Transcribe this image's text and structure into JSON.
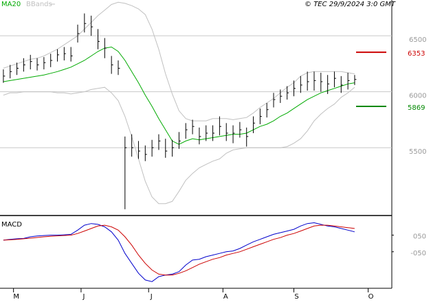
{
  "chart_data": [
    {
      "type": "ohlc",
      "header": "© TEC 29/9/2024 3:0 GMT",
      "x": [
        1,
        3,
        5,
        7,
        9,
        11,
        13,
        15,
        17,
        19,
        21,
        23,
        25,
        27,
        29,
        31,
        33,
        35,
        37,
        39,
        41,
        43,
        45,
        47,
        49,
        51,
        53,
        55,
        57,
        59,
        61,
        63,
        65,
        67,
        69,
        71,
        73,
        75,
        77,
        79,
        81,
        83,
        85,
        87,
        89,
        91,
        93,
        95,
        97,
        99,
        101,
        103,
        105
      ],
      "high": [
        6200,
        6240,
        6260,
        6300,
        6330,
        6300,
        6310,
        6340,
        6380,
        6400,
        6400,
        6600,
        6700,
        6680,
        6560,
        6480,
        6320,
        6280,
        5600,
        5620,
        5560,
        5520,
        5570,
        5620,
        5580,
        5570,
        5640,
        5720,
        5750,
        5680,
        5700,
        5700,
        5780,
        5720,
        5700,
        5730,
        5680,
        5780,
        5850,
        5900,
        5990,
        6020,
        6050,
        6100,
        6140,
        6180,
        6180,
        6170,
        6150,
        6180,
        6140,
        6170,
        6150
      ],
      "low": [
        6080,
        6120,
        6150,
        6180,
        6200,
        6190,
        6200,
        6220,
        6270,
        6280,
        6270,
        6440,
        6530,
        6500,
        6380,
        6300,
        6160,
        6150,
        4950,
        5420,
        5400,
        5380,
        5420,
        5480,
        5410,
        5420,
        5490,
        5580,
        5620,
        5530,
        5560,
        5560,
        5610,
        5560,
        5540,
        5590,
        5510,
        5630,
        5710,
        5770,
        5860,
        5900,
        5930,
        5960,
        5990,
        6010,
        6010,
        6000,
        5980,
        6040,
        5990,
        6020,
        6060
      ],
      "close": [
        6140,
        6180,
        6210,
        6240,
        6270,
        6240,
        6260,
        6280,
        6330,
        6340,
        6320,
        6520,
        6610,
        6580,
        6450,
        6390,
        6240,
        6210,
        5500,
        5500,
        5470,
        5440,
        5500,
        5560,
        5470,
        5500,
        5560,
        5660,
        5690,
        5600,
        5630,
        5630,
        5690,
        5630,
        5630,
        5660,
        5600,
        5720,
        5780,
        5840,
        5930,
        5960,
        5990,
        6030,
        6060,
        6090,
        6100,
        6090,
        6070,
        6120,
        6060,
        6100,
        6110
      ],
      "bar_color": "#000000",
      "series": [
        {
          "name": "MA20",
          "color": "#00aa00",
          "values": [
            6090,
            6100,
            6110,
            6120,
            6130,
            6140,
            6150,
            6165,
            6180,
            6200,
            6220,
            6250,
            6280,
            6320,
            6360,
            6390,
            6400,
            6360,
            6280,
            6180,
            6080,
            5970,
            5870,
            5760,
            5660,
            5560,
            5530,
            5560,
            5580,
            5570,
            5580,
            5590,
            5600,
            5610,
            5620,
            5620,
            5630,
            5660,
            5690,
            5710,
            5740,
            5780,
            5810,
            5850,
            5890,
            5930,
            5960,
            5990,
            6010,
            6030,
            6050,
            6070,
            6080
          ]
        },
        {
          "name": "BBands",
          "color": "#c0c0c0",
          "upper": [
            6210,
            6230,
            6250,
            6270,
            6290,
            6300,
            6320,
            6350,
            6380,
            6420,
            6460,
            6500,
            6560,
            6620,
            6680,
            6730,
            6780,
            6800,
            6790,
            6770,
            6740,
            6690,
            6560,
            6380,
            6160,
            5980,
            5830,
            5760,
            5740,
            5740,
            5740,
            5760,
            5760,
            5760,
            5750,
            5760,
            5770,
            5810,
            5860,
            5900,
            5940,
            5990,
            6040,
            6080,
            6140,
            6170,
            6180,
            6180,
            6180,
            6180,
            6180,
            6170,
            6160
          ],
          "lower": [
            5970,
            5990,
            5990,
            6000,
            6000,
            6000,
            6000,
            6000,
            5990,
            5990,
            5980,
            5990,
            6000,
            6020,
            6030,
            6040,
            5990,
            5920,
            5780,
            5600,
            5400,
            5200,
            5060,
            5000,
            5000,
            5020,
            5110,
            5210,
            5270,
            5320,
            5350,
            5380,
            5400,
            5450,
            5480,
            5490,
            5500,
            5500,
            5500,
            5500,
            5500,
            5500,
            5510,
            5540,
            5580,
            5650,
            5740,
            5800,
            5850,
            5890,
            5950,
            5990,
            6040
          ]
        }
      ],
      "levels": [
        {
          "value": 6353,
          "color": "#cc0000"
        },
        {
          "value": 5869,
          "color": "#008800"
        }
      ],
      "xlim": [
        0,
        116
      ],
      "ylim": [
        4900,
        6820
      ],
      "yticks": [
        5500,
        6000,
        6500
      ],
      "grid": true
    },
    {
      "type": "line",
      "title": "MACD",
      "x": [
        1,
        3,
        5,
        7,
        9,
        11,
        13,
        15,
        17,
        19,
        21,
        23,
        25,
        27,
        29,
        31,
        33,
        35,
        37,
        39,
        41,
        43,
        45,
        47,
        49,
        51,
        53,
        55,
        57,
        59,
        61,
        63,
        65,
        67,
        69,
        71,
        73,
        75,
        77,
        79,
        81,
        83,
        85,
        87,
        89,
        91,
        93,
        95,
        97,
        99,
        101,
        103,
        105
      ],
      "series": [
        {
          "color": "#0000cc",
          "values": [
            20,
            25,
            28,
            30,
            40,
            45,
            48,
            50,
            50,
            52,
            55,
            80,
            110,
            120,
            115,
            100,
            70,
            20,
            -60,
            -120,
            -180,
            -220,
            -230,
            -200,
            -190,
            -185,
            -170,
            -130,
            -100,
            -95,
            -80,
            -70,
            -60,
            -50,
            -45,
            -30,
            -10,
            10,
            25,
            40,
            55,
            65,
            75,
            85,
            105,
            120,
            125,
            115,
            105,
            100,
            90,
            80,
            70
          ]
        },
        {
          "color": "#cc0000",
          "values": [
            20,
            22,
            25,
            28,
            32,
            36,
            40,
            43,
            46,
            48,
            50,
            60,
            75,
            90,
            105,
            110,
            100,
            80,
            40,
            -10,
            -70,
            -120,
            -160,
            -185,
            -190,
            -190,
            -180,
            -165,
            -145,
            -125,
            -110,
            -95,
            -85,
            -70,
            -60,
            -50,
            -35,
            -20,
            -5,
            10,
            25,
            35,
            50,
            60,
            75,
            90,
            105,
            110,
            110,
            105,
            100,
            95,
            90
          ]
        }
      ],
      "xlim": [
        0,
        116
      ],
      "ylim": [
        -270,
        160
      ],
      "yticks": [
        {
          "value": 50,
          "label": "050"
        },
        {
          "value": -50,
          "label": "-050"
        }
      ],
      "xticks": [
        {
          "value": 4,
          "label": "M"
        },
        {
          "value": 24,
          "label": "J"
        },
        {
          "value": 44,
          "label": "J"
        },
        {
          "value": 66,
          "label": "A"
        },
        {
          "value": 87,
          "label": "S"
        },
        {
          "value": 109,
          "label": "O"
        }
      ]
    }
  ]
}
